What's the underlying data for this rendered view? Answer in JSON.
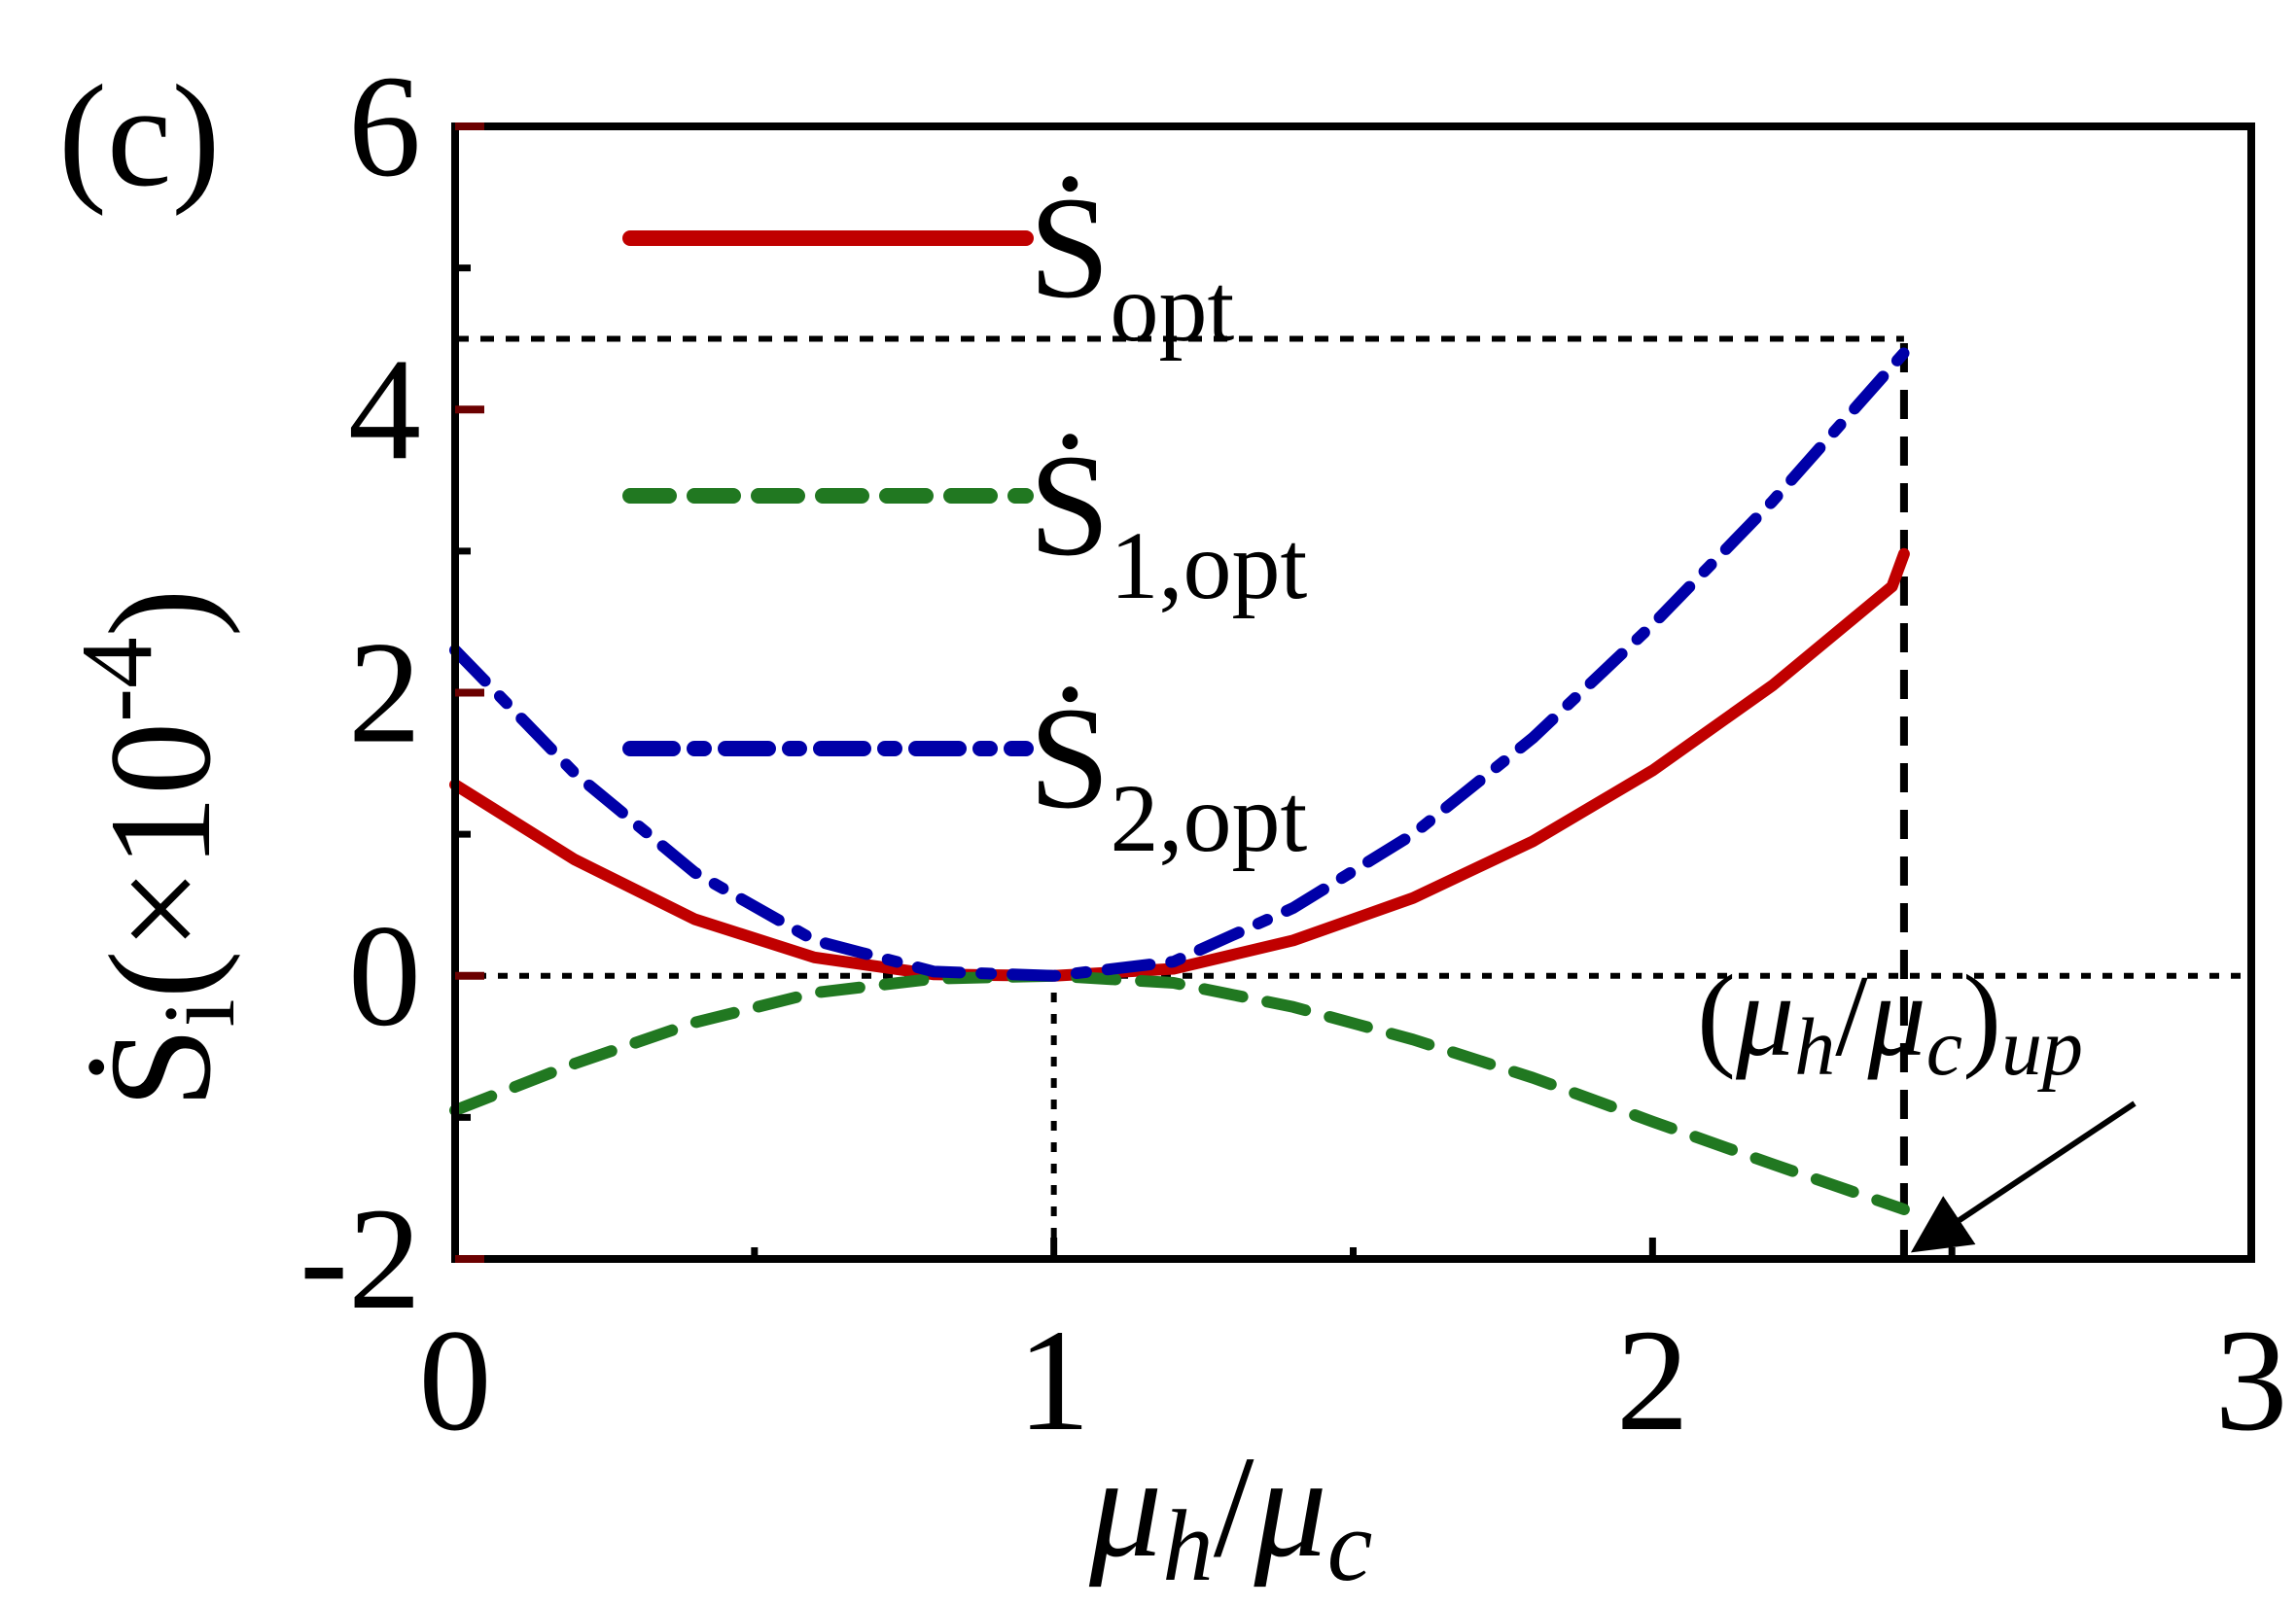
{
  "panel_label": "(c)",
  "chart_data": {
    "type": "line",
    "xlabel": {
      "main": "μ",
      "sub1": "h",
      "slash": "/",
      "main2": "μ",
      "sub2": "c"
    },
    "ylabel": {
      "main": "Ṡ",
      "sub": "i",
      "paren_open": "(",
      "times": "×",
      "base": "10",
      "exp": "-4",
      "paren_close": ")"
    },
    "xlim": [
      0,
      3
    ],
    "ylim": [
      -2,
      6
    ],
    "xticks": [
      0,
      1,
      2,
      3
    ],
    "xtick_labels": [
      "0",
      "1",
      "2",
      "3"
    ],
    "yticks": [
      -2,
      0,
      2,
      4,
      6
    ],
    "ytick_labels": [
      "-2",
      "0",
      "2",
      "4",
      "6"
    ],
    "grid": false,
    "legend_position": "top-left",
    "series": [
      {
        "name": "Ṡopt",
        "legend": {
          "main": "Ṡ",
          "sub": "opt"
        },
        "color": "#c00000",
        "dash": "solid",
        "x": [
          0,
          0.2,
          0.4,
          0.6,
          0.8,
          1.0,
          1.2,
          1.4,
          1.6,
          1.8,
          2.0,
          2.2,
          2.4,
          2.42
        ],
        "y": [
          1.35,
          0.82,
          0.4,
          0.13,
          0.01,
          0.0,
          0.05,
          0.25,
          0.55,
          0.95,
          1.45,
          2.05,
          2.75,
          2.98
        ]
      },
      {
        "name": "Ṡ1,opt",
        "legend": {
          "main": "Ṡ",
          "sub": "1,opt"
        },
        "color": "#217821",
        "dash": "dashed",
        "x": [
          0,
          0.2,
          0.4,
          0.6,
          0.8,
          1.0,
          1.2,
          1.4,
          1.6,
          1.8,
          2.0,
          2.2,
          2.42
        ],
        "y": [
          -0.95,
          -0.62,
          -0.33,
          -0.12,
          -0.02,
          0.0,
          -0.05,
          -0.22,
          -0.45,
          -0.72,
          -1.03,
          -1.33,
          -1.65
        ]
      },
      {
        "name": "Ṡ2,opt",
        "legend": {
          "main": "Ṡ",
          "sub": "2,opt"
        },
        "color": "#0000a8",
        "dash": "dashdot",
        "x": [
          0,
          0.2,
          0.4,
          0.6,
          0.8,
          1.0,
          1.2,
          1.4,
          1.6,
          1.8,
          2.0,
          2.2,
          2.42
        ],
        "y": [
          2.3,
          1.43,
          0.73,
          0.25,
          0.03,
          0.0,
          0.1,
          0.48,
          1.0,
          1.68,
          2.48,
          3.35,
          4.4
        ]
      }
    ],
    "reference_lines": [
      {
        "type": "hline",
        "y": 0,
        "style": "dotted"
      },
      {
        "type": "vline",
        "x": 1,
        "y_from": -2,
        "y_to": 0,
        "style": "dotted"
      },
      {
        "type": "hline",
        "y": 4.5,
        "x_from": 0,
        "x_to": 2.42,
        "style": "dashed"
      },
      {
        "type": "vline",
        "x": 2.42,
        "y_from": -2,
        "y_to": 4.5,
        "style": "dashed"
      }
    ],
    "annotation": {
      "text": {
        "open": "(",
        "mu1": "μ",
        "sub1": "h",
        "slash": "/",
        "mu2": "μ",
        "sub2": "c",
        "close": ")",
        "sub3": "up"
      },
      "arrow_to": {
        "x": 2.42,
        "y": -2
      }
    }
  }
}
